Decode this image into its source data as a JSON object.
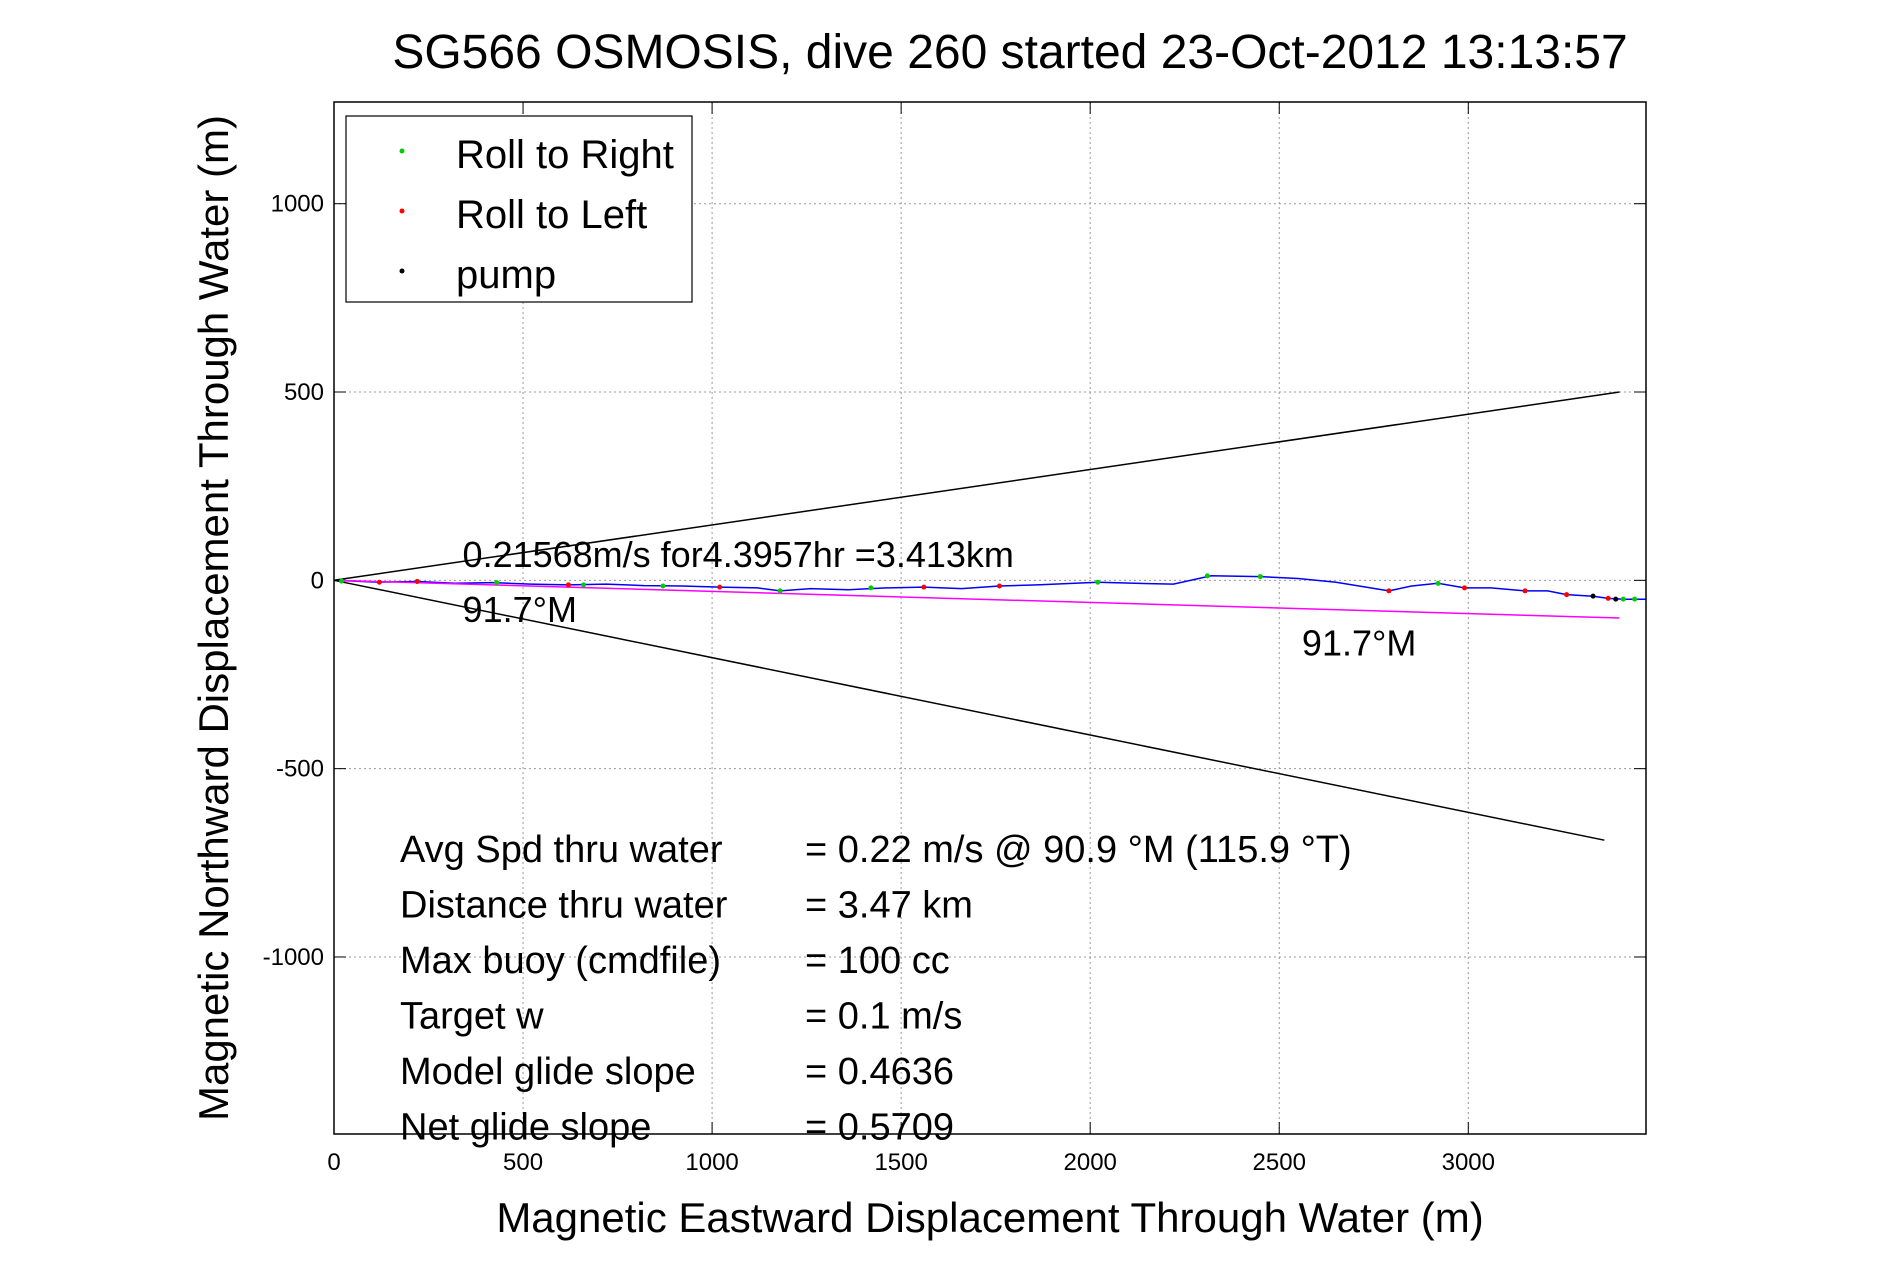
{
  "chart_data": {
    "type": "line",
    "title": "SG566 OSMOSIS, dive 260 started 23-Oct-2012 13:13:57",
    "xlabel": "Magnetic Eastward Displacement Through Water (m)",
    "ylabel": "Magnetic Northward Displacement Through Water (m)",
    "xlim": [
      0,
      3470
    ],
    "ylim": [
      -1470,
      1270
    ],
    "xticks": [
      0,
      500,
      1000,
      1500,
      2000,
      2500,
      3000
    ],
    "xtick_labels": [
      "0",
      "500",
      "1000",
      "1500",
      "2000",
      "2500",
      "3000"
    ],
    "yticks": [
      1000,
      500,
      0,
      -500,
      -1000
    ],
    "ytick_labels": [
      "1000",
      "500",
      "0",
      "-500",
      "-1000"
    ],
    "grid": true,
    "legend_position": "top-left",
    "legend": [
      {
        "label": "Roll to Right",
        "color": "#00cc00"
      },
      {
        "label": "Roll to Left",
        "color": "#ff0000"
      },
      {
        "label": "pump",
        "color": "#000000"
      }
    ],
    "series": [
      {
        "color": "#0000ff",
        "x": [
          0,
          120,
          220,
          320,
          420,
          520,
          620,
          720,
          820,
          920,
          1020,
          1120,
          1180,
          1260,
          1360,
          1460,
          1560,
          1660,
          1760,
          1860,
          2020,
          2120,
          2220,
          2320,
          2450,
          2550,
          2650,
          2790,
          2850,
          2920,
          2990,
          3060,
          3150,
          3210,
          3260,
          3330,
          3370,
          3410,
          3470
        ],
        "y": [
          0,
          -5,
          -3,
          -8,
          -6,
          -10,
          -12,
          -10,
          -14,
          -15,
          -18,
          -20,
          -28,
          -22,
          -25,
          -20,
          -18,
          -22,
          -15,
          -12,
          -5,
          -8,
          -10,
          12,
          10,
          5,
          -5,
          -28,
          -15,
          -8,
          -20,
          -20,
          -28,
          -28,
          -38,
          -42,
          -48,
          -50,
          -50
        ]
      },
      {
        "color": "#ff00ff",
        "x": [
          0,
          3400
        ],
        "y": [
          0,
          -100
        ]
      },
      {
        "color": "#000000",
        "x": [
          0,
          3400
        ],
        "y": [
          0,
          500
        ]
      },
      {
        "color": "#000000",
        "x": [
          0,
          3360
        ],
        "y": [
          0,
          -690
        ]
      }
    ],
    "markers": {
      "roll_right": {
        "color": "#00cc00",
        "x": [
          20,
          220,
          430,
          660,
          870,
          1180,
          1420,
          2020,
          2310,
          2450,
          2920,
          3410,
          3440
        ],
        "y": [
          -2,
          -3,
          -6,
          -12,
          -15,
          -28,
          -20,
          -5,
          12,
          10,
          -8,
          -50,
          -50
        ]
      },
      "roll_left": {
        "color": "#ff0000",
        "x": [
          120,
          220,
          620,
          1020,
          1560,
          1760,
          2790,
          2990,
          3150,
          3260,
          3370
        ],
        "y": [
          -5,
          -3,
          -12,
          -18,
          -18,
          -15,
          -28,
          -20,
          -28,
          -38,
          -48
        ]
      },
      "pump": {
        "color": "#000000",
        "x": [
          3330,
          3390
        ],
        "y": [
          -42,
          -50
        ]
      }
    },
    "annotations": [
      {
        "text": "0.21568m/s for4.3957hr =3.413km",
        "x": 340,
        "y": 35
      },
      {
        "text": "91.7°M",
        "x": 340,
        "y": -110
      },
      {
        "text": "91.7°M",
        "x": 2560,
        "y": -200
      }
    ],
    "stats": [
      {
        "label": "Avg Spd thru water",
        "value": "=  0.22 m/s @  90.9 °M (115.9 °T)"
      },
      {
        "label": "Distance thru water",
        "value": "=  3.47 km"
      },
      {
        "label": "Max buoy (cmdfile)",
        "value": "= 100 cc"
      },
      {
        "label": "Target w",
        "value": "= 0.1 m/s"
      },
      {
        "label": "Model glide slope",
        "value": "= 0.4636"
      },
      {
        "label": "Net glide slope",
        "value": "= 0.5709"
      }
    ]
  }
}
